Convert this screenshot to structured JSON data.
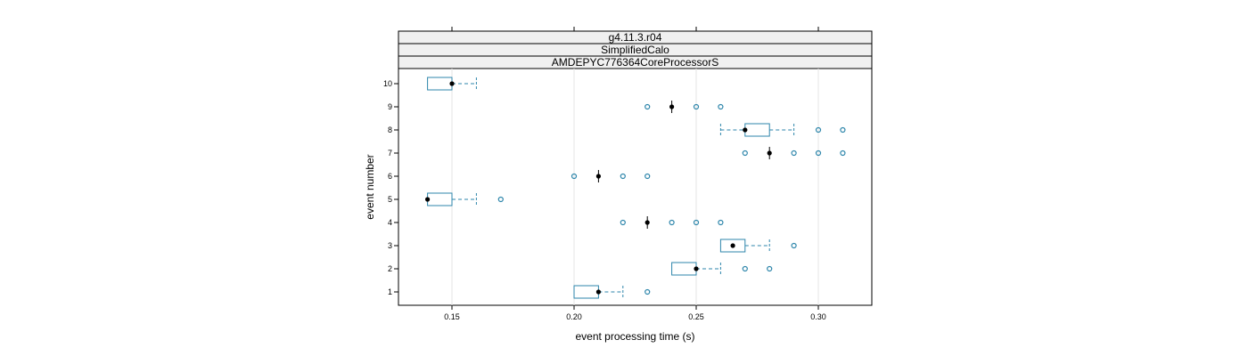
{
  "chart_data": {
    "type": "boxplot",
    "strips": [
      "g4.11.3.r04",
      "SimplifiedCalo",
      "AMDEPYC776364CoreProcessorS"
    ],
    "xlabel": "event processing time (s)",
    "ylabel": "event number",
    "xlim": [
      0.13,
      0.325
    ],
    "xticks": [
      0.15,
      0.2,
      0.25,
      0.3
    ],
    "xtick_labels": [
      "0.15",
      "0.20",
      "0.25",
      "0.30"
    ],
    "categories": [
      "1",
      "2",
      "3",
      "4",
      "5",
      "6",
      "7",
      "8",
      "9",
      "10"
    ],
    "grid": true,
    "colors": {
      "box": "#2e86ab",
      "median": "#000000",
      "strip_bg": "#f0f0f0",
      "grid": "#e6e6e6"
    },
    "boxes": [
      {
        "event": "1",
        "whisker_low": 0.2,
        "q1": 0.2,
        "median": 0.21,
        "q3": 0.21,
        "whisker_high": 0.22,
        "outliers": [
          0.23
        ]
      },
      {
        "event": "2",
        "whisker_low": 0.24,
        "q1": 0.24,
        "median": 0.25,
        "q3": 0.25,
        "whisker_high": 0.26,
        "outliers": [
          0.27,
          0.28
        ]
      },
      {
        "event": "3",
        "whisker_low": 0.26,
        "q1": 0.26,
        "median": 0.265,
        "q3": 0.27,
        "whisker_high": 0.28,
        "outliers": [
          0.29
        ]
      },
      {
        "event": "4",
        "whisker_low": 0.23,
        "q1": 0.23,
        "median": 0.23,
        "q3": 0.23,
        "whisker_high": 0.23,
        "outliers": [
          0.22,
          0.24,
          0.25,
          0.26
        ]
      },
      {
        "event": "5",
        "whisker_low": 0.14,
        "q1": 0.14,
        "median": 0.14,
        "q3": 0.15,
        "whisker_high": 0.16,
        "outliers": [
          0.17
        ]
      },
      {
        "event": "6",
        "whisker_low": 0.21,
        "q1": 0.21,
        "median": 0.21,
        "q3": 0.21,
        "whisker_high": 0.21,
        "outliers": [
          0.2,
          0.22,
          0.23
        ]
      },
      {
        "event": "7",
        "whisker_low": 0.28,
        "q1": 0.28,
        "median": 0.28,
        "q3": 0.28,
        "whisker_high": 0.28,
        "outliers": [
          0.27,
          0.29,
          0.3,
          0.31
        ]
      },
      {
        "event": "8",
        "whisker_low": 0.26,
        "q1": 0.27,
        "median": 0.27,
        "q3": 0.28,
        "whisker_high": 0.29,
        "outliers": [
          0.3,
          0.31
        ]
      },
      {
        "event": "9",
        "whisker_low": 0.24,
        "q1": 0.24,
        "median": 0.24,
        "q3": 0.24,
        "whisker_high": 0.24,
        "outliers": [
          0.23,
          0.25,
          0.26
        ]
      },
      {
        "event": "10",
        "whisker_low": 0.14,
        "q1": 0.14,
        "median": 0.15,
        "q3": 0.15,
        "whisker_high": 0.16,
        "outliers": []
      }
    ]
  }
}
